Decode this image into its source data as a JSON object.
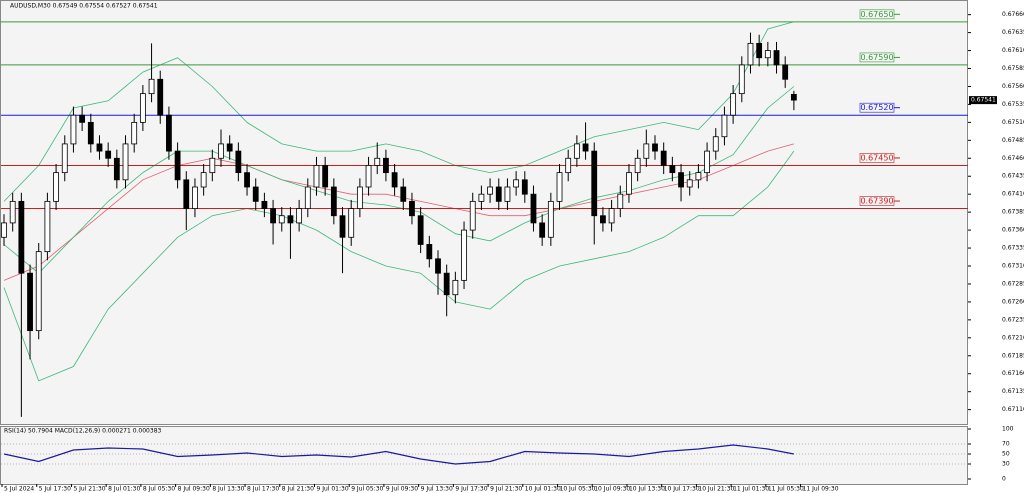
{
  "chart_data": {
    "type": "candlestick",
    "title": "AUDUSD,M30  0.67549 0.67554 0.67527 0.67541",
    "time_labels": [
      "5 Jul 2024",
      "5 Jul 17:30",
      "5 Jul 21:30",
      "8 Jul 01:30",
      "8 Jul 05:30",
      "8 Jul 09:30",
      "8 Jul 13:30",
      "8 Jul 17:30",
      "8 Jul 21:30",
      "9 Jul 01:30",
      "9 Jul 05:30",
      "9 Jul 09:30",
      "9 Jul 13:30",
      "9 Jul 17:30",
      "9 Jul 21:30",
      "10 Jul 01:30",
      "10 Jul 05:30",
      "10 Jul 09:30",
      "10 Jul 13:30",
      "10 Jul 17:30",
      "10 Jul 21:30",
      "11 Jul 01:30",
      "11 Jul 05:30",
      "11 Jul 09:30"
    ],
    "open": [
      0.6735,
      0.6737,
      0.674,
      0.673,
      0.6722,
      0.6733,
      0.674,
      0.6744,
      0.6748,
      0.6752,
      0.6751,
      0.6748,
      0.6747,
      0.6746,
      0.6743,
      0.6748,
      0.6751,
      0.6755,
      0.6757,
      0.6752,
      0.6747,
      0.6743,
      0.6739,
      0.6742,
      0.6744,
      0.6746,
      0.6748,
      0.6747,
      0.6744,
      0.6742,
      0.674,
      0.6739,
      0.6737,
      0.6738,
      0.6737,
      0.6739,
      0.6742,
      0.6745,
      0.6742,
      0.6738,
      0.6735,
      0.6739,
      0.6742,
      0.6745,
      0.6746,
      0.6744,
      0.6742,
      0.674,
      0.6738,
      0.6734,
      0.6732,
      0.673,
      0.6727,
      0.6729,
      0.6736,
      0.674,
      0.6741,
      0.6742,
      0.674,
      0.6742,
      0.6743,
      0.6741,
      0.6737,
      0.6735,
      0.674,
      0.6744,
      0.6746,
      0.6748,
      0.6747,
      0.6738,
      0.6737,
      0.6739,
      0.6741,
      0.6744,
      0.6746,
      0.6748,
      0.6747,
      0.6745,
      0.6744,
      0.6742,
      0.6743,
      0.6744,
      0.6747,
      0.6749,
      0.6752,
      0.6755,
      0.6759,
      0.6762,
      0.676,
      0.6761,
      0.6759,
      0.67549
    ],
    "high": [
      0.67382,
      0.67412,
      0.67412,
      0.67312,
      0.67342,
      0.67412,
      0.67452,
      0.67492,
      0.67532,
      0.67532,
      0.67522,
      0.67492,
      0.67482,
      0.67472,
      0.67492,
      0.67522,
      0.67562,
      0.6762,
      0.67582,
      0.67532,
      0.67482,
      0.67442,
      0.67432,
      0.67452,
      0.67472,
      0.675,
      0.67492,
      0.67482,
      0.67452,
      0.67432,
      0.67412,
      0.67402,
      0.67392,
      0.67392,
      0.67402,
      0.67432,
      0.67462,
      0.67462,
      0.67432,
      0.67392,
      0.67402,
      0.67432,
      0.67462,
      0.67482,
      0.67472,
      0.67452,
      0.67432,
      0.67412,
      0.67392,
      0.67352,
      0.67332,
      0.67312,
      0.67302,
      0.67372,
      0.67412,
      0.67422,
      0.67432,
      0.67432,
      0.67432,
      0.67442,
      0.67442,
      0.67422,
      0.67382,
      0.67412,
      0.67452,
      0.67472,
      0.67492,
      0.6751,
      0.67482,
      0.67392,
      0.67402,
      0.67422,
      0.67452,
      0.67472,
      0.675,
      0.67492,
      0.67482,
      0.67462,
      0.67452,
      0.67442,
      0.67452,
      0.67482,
      0.67502,
      0.67532,
      0.67562,
      0.67602,
      0.67635,
      0.67632,
      0.67622,
      0.67622,
      0.67602,
      0.67554
    ],
    "low": [
      0.67338,
      0.67358,
      0.671,
      0.6718,
      0.67208,
      0.67318,
      0.67388,
      0.67428,
      0.67468,
      0.67498,
      0.67468,
      0.67458,
      0.67448,
      0.67418,
      0.67418,
      0.67468,
      0.67498,
      0.67538,
      0.67508,
      0.67458,
      0.67418,
      0.6736,
      0.67378,
      0.67408,
      0.67428,
      0.67448,
      0.67458,
      0.67428,
      0.67408,
      0.67388,
      0.67378,
      0.6734,
      0.67358,
      0.6732,
      0.67358,
      0.67378,
      0.67408,
      0.67408,
      0.67368,
      0.673,
      0.67338,
      0.67378,
      0.67408,
      0.67438,
      0.67428,
      0.67408,
      0.67388,
      0.67368,
      0.67328,
      0.67308,
      0.6727,
      0.6724,
      0.67258,
      0.67278,
      0.67348,
      0.67388,
      0.67398,
      0.67388,
      0.67388,
      0.67408,
      0.67398,
      0.67358,
      0.67338,
      0.67338,
      0.67388,
      0.67428,
      0.67448,
      0.67458,
      0.6734,
      0.67358,
      0.67358,
      0.67378,
      0.67398,
      0.67428,
      0.67448,
      0.67458,
      0.67438,
      0.67428,
      0.674,
      0.67408,
      0.67418,
      0.67428,
      0.67458,
      0.67478,
      0.67508,
      0.67538,
      0.67578,
      0.67588,
      0.67588,
      0.67578,
      0.67558,
      0.67527
    ],
    "close": [
      0.6737,
      0.674,
      0.673,
      0.6722,
      0.6733,
      0.674,
      0.6744,
      0.6748,
      0.6752,
      0.6751,
      0.6748,
      0.6747,
      0.6746,
      0.6743,
      0.6748,
      0.6751,
      0.6755,
      0.6757,
      0.6752,
      0.6747,
      0.6743,
      0.6739,
      0.6742,
      0.6744,
      0.6746,
      0.6748,
      0.6747,
      0.6744,
      0.6742,
      0.674,
      0.6739,
      0.6737,
      0.6738,
      0.6737,
      0.6739,
      0.6742,
      0.6745,
      0.6742,
      0.6738,
      0.6735,
      0.6739,
      0.6742,
      0.6745,
      0.6746,
      0.6744,
      0.6742,
      0.674,
      0.6738,
      0.6734,
      0.6732,
      0.673,
      0.6727,
      0.6729,
      0.6736,
      0.674,
      0.6741,
      0.6742,
      0.674,
      0.6742,
      0.6743,
      0.6741,
      0.6737,
      0.6735,
      0.674,
      0.6744,
      0.6746,
      0.6748,
      0.6747,
      0.6738,
      0.6737,
      0.6739,
      0.6741,
      0.6744,
      0.6746,
      0.6748,
      0.6747,
      0.6745,
      0.6744,
      0.6742,
      0.6743,
      0.6744,
      0.6747,
      0.6749,
      0.6752,
      0.6755,
      0.6759,
      0.6762,
      0.676,
      0.6761,
      0.6759,
      0.6757,
      0.67541
    ],
    "ylim": [
      0.6709,
      0.67679
    ],
    "yticks": [
      {
        "value": 0.6766,
        "label": "0.67660"
      },
      0.67635,
      {
        "value": 0.6761,
        "label": "0.67610"
      },
      0.67585,
      {
        "value": 0.6756,
        "label": "0.67560"
      },
      0.67535,
      {
        "value": 0.6751,
        "label": "0.67510"
      },
      0.67485,
      {
        "value": 0.6746,
        "label": "0.67460"
      },
      0.67435,
      {
        "value": 0.6741,
        "label": "0.67410"
      },
      0.67385,
      {
        "value": 0.6736,
        "label": "0.67360"
      },
      0.67335,
      {
        "value": 0.6731,
        "label": "0.67310"
      },
      0.67285,
      {
        "value": 0.6726,
        "label": "0.67260"
      },
      0.67235,
      {
        "value": 0.6721,
        "label": "0.67210"
      },
      0.67185,
      {
        "value": 0.6716,
        "label": "0.67160"
      },
      0.67135,
      {
        "value": 0.6711,
        "label": "0.67110"
      }
    ],
    "levels": [
      {
        "value": 0.6765,
        "label": "0.67650",
        "color": "#3a9a3a"
      },
      {
        "value": 0.6759,
        "label": "0.67590",
        "color": "#3a9a3a"
      },
      {
        "value": 0.6752,
        "label": "0.67520",
        "color": "#1b1bd8"
      },
      {
        "value": 0.6745,
        "label": "0.67450",
        "color": "#c82020"
      },
      {
        "value": 0.6739,
        "label": "0.67390",
        "color": "#c82020"
      }
    ],
    "indicator_x": [
      0,
      4,
      8,
      12,
      16,
      20,
      24,
      28,
      32,
      36,
      40,
      44,
      48,
      52,
      56,
      60,
      64,
      68,
      72,
      76,
      80,
      84,
      88,
      91
    ],
    "series": [
      {
        "color": "#e06070",
        "values": [
          0.6729,
          0.6731,
          0.6735,
          0.6739,
          0.6743,
          0.6745,
          0.6746,
          0.6745,
          0.6743,
          0.6742,
          0.6741,
          0.6741,
          0.674,
          0.6739,
          0.6738,
          0.6738,
          0.6739,
          0.674,
          0.6741,
          0.6742,
          0.6743,
          0.6745,
          0.6747,
          0.6748
        ]
      },
      {
        "color": "#3cb878",
        "values": [
          0.674,
          0.6745,
          0.6753,
          0.6754,
          0.6758,
          0.676,
          0.6756,
          0.6751,
          0.6748,
          0.6747,
          0.6747,
          0.6748,
          0.6747,
          0.6745,
          0.6744,
          0.6745,
          0.6747,
          0.6749,
          0.675,
          0.6751,
          0.675,
          0.6755,
          0.6764,
          0.6765
        ]
      },
      {
        "color": "#3cb878",
        "values": [
          0.6734,
          0.673,
          0.6735,
          0.674,
          0.6744,
          0.6747,
          0.6747,
          0.6745,
          0.6743,
          0.67415,
          0.674,
          0.67395,
          0.67385,
          0.67355,
          0.67345,
          0.6737,
          0.6739,
          0.67405,
          0.67415,
          0.6743,
          0.6744,
          0.67465,
          0.6753,
          0.6756
        ]
      },
      {
        "color": "#3cb878",
        "values": [
          0.6728,
          0.6715,
          0.6717,
          0.6725,
          0.673,
          0.6735,
          0.6738,
          0.6739,
          0.6738,
          0.6736,
          0.6733,
          0.6731,
          0.673,
          0.6726,
          0.6725,
          0.6729,
          0.6731,
          0.6732,
          0.6733,
          0.6735,
          0.6738,
          0.6738,
          0.6742,
          0.6747
        ]
      }
    ],
    "indicator": {
      "subtitle": "RSI(14) 50.7904  MACD(12,26,9) 0.000271 0.000383",
      "ylim": [
        0,
        100
      ],
      "yticks": [
        100,
        70,
        50,
        30,
        0
      ],
      "color": "#1a1aa0",
      "values": [
        50,
        35,
        58,
        62,
        60,
        45,
        48,
        52,
        45,
        48,
        44,
        55,
        40,
        30,
        35,
        55,
        52,
        50,
        45,
        55,
        60,
        68,
        60,
        50
      ]
    }
  }
}
